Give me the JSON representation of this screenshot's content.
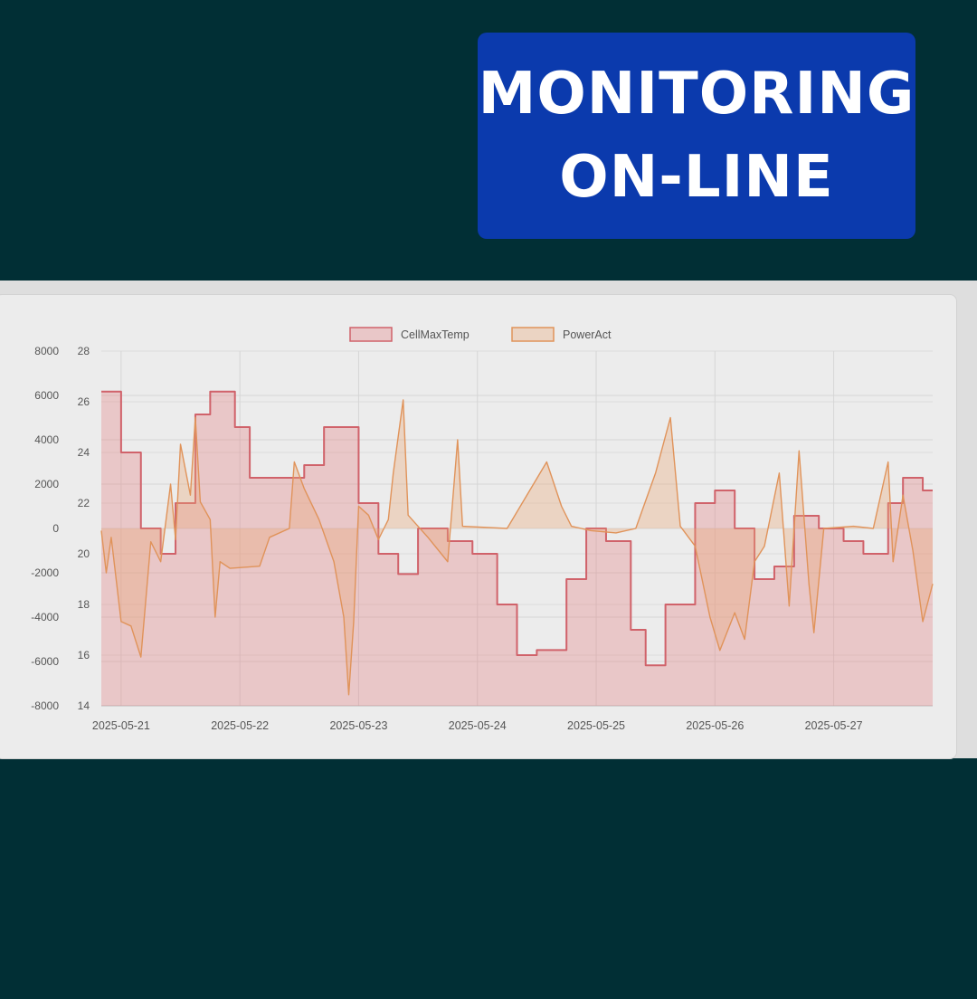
{
  "banner": {
    "line1": "MONITORING",
    "line2": "ON-LINE",
    "background": "#0b3aad"
  },
  "chart_data": {
    "type": "area",
    "x_start": "2025-05-20T20:00",
    "x_end": "2025-05-27T20:00",
    "x_tick_labels": [
      "2025-05-21",
      "2025-05-22",
      "2025-05-23",
      "2025-05-24",
      "2025-05-25",
      "2025-05-26",
      "2025-05-27"
    ],
    "y_left": {
      "ticks": [
        8000,
        6000,
        4000,
        2000,
        0,
        -2000,
        -4000,
        -6000,
        -8000
      ],
      "range": [
        -8000,
        8000
      ]
    },
    "y_right": {
      "ticks": [
        28,
        26,
        24,
        22,
        20,
        18,
        16,
        14
      ],
      "range": [
        14,
        28
      ]
    },
    "grid": true,
    "legend_position": "top-center",
    "series": [
      {
        "name": "CellMaxTemp",
        "axis": "right",
        "color": "#d0626a",
        "fill": "rgba(226,120,125,0.32)",
        "points": [
          [
            "2025-05-20T20:00",
            26.4
          ],
          [
            "2025-05-21T00:00",
            24.0
          ],
          [
            "2025-05-21T04:00",
            21.0
          ],
          [
            "2025-05-21T08:00",
            20.0
          ],
          [
            "2025-05-21T11:00",
            22.0
          ],
          [
            "2025-05-21T15:00",
            25.5
          ],
          [
            "2025-05-21T18:00",
            26.4
          ],
          [
            "2025-05-21T23:00",
            25.0
          ],
          [
            "2025-05-22T02:00",
            23.0
          ],
          [
            "2025-05-22T09:00",
            23.0
          ],
          [
            "2025-05-22T13:00",
            23.5
          ],
          [
            "2025-05-22T17:00",
            25.0
          ],
          [
            "2025-05-22T20:00",
            25.0
          ],
          [
            "2025-05-23T00:00",
            22.0
          ],
          [
            "2025-05-23T04:00",
            20.0
          ],
          [
            "2025-05-23T08:00",
            19.2
          ],
          [
            "2025-05-23T12:00",
            21.0
          ],
          [
            "2025-05-23T18:00",
            20.5
          ],
          [
            "2025-05-23T23:00",
            20.0
          ],
          [
            "2025-05-24T04:00",
            18.0
          ],
          [
            "2025-05-24T08:00",
            16.0
          ],
          [
            "2025-05-24T12:00",
            16.2
          ],
          [
            "2025-05-24T18:00",
            19.0
          ],
          [
            "2025-05-24T22:00",
            21.0
          ],
          [
            "2025-05-25T02:00",
            20.5
          ],
          [
            "2025-05-25T07:00",
            17.0
          ],
          [
            "2025-05-25T10:00",
            15.6
          ],
          [
            "2025-05-25T14:00",
            18.0
          ],
          [
            "2025-05-25T20:00",
            22.0
          ],
          [
            "2025-05-26T00:00",
            22.5
          ],
          [
            "2025-05-26T04:00",
            21.0
          ],
          [
            "2025-05-26T08:00",
            19.0
          ],
          [
            "2025-05-26T12:00",
            19.5
          ],
          [
            "2025-05-26T16:00",
            21.5
          ],
          [
            "2025-05-26T21:00",
            21.0
          ],
          [
            "2025-05-27T02:00",
            20.5
          ],
          [
            "2025-05-27T06:00",
            20.0
          ],
          [
            "2025-05-27T11:00",
            22.0
          ],
          [
            "2025-05-27T14:00",
            23.0
          ],
          [
            "2025-05-27T18:00",
            22.5
          ],
          [
            "2025-05-27T20:00",
            22.5
          ]
        ]
      },
      {
        "name": "PowerAct",
        "axis": "left",
        "color": "#e0935a",
        "fill": "rgba(235,170,120,0.35)",
        "points": [
          [
            "2025-05-20T20:00",
            -100
          ],
          [
            "2025-05-20T21:00",
            -2000
          ],
          [
            "2025-05-20T22:00",
            -400
          ],
          [
            "2025-05-21T00:00",
            -4200
          ],
          [
            "2025-05-21T02:00",
            -4400
          ],
          [
            "2025-05-21T04:00",
            -5800
          ],
          [
            "2025-05-21T06:00",
            -600
          ],
          [
            "2025-05-21T08:00",
            -1500
          ],
          [
            "2025-05-21T10:00",
            2000
          ],
          [
            "2025-05-21T11:00",
            -500
          ],
          [
            "2025-05-21T12:00",
            3800
          ],
          [
            "2025-05-21T14:00",
            1500
          ],
          [
            "2025-05-21T15:00",
            5000
          ],
          [
            "2025-05-21T16:00",
            1200
          ],
          [
            "2025-05-21T18:00",
            400
          ],
          [
            "2025-05-21T19:00",
            -4000
          ],
          [
            "2025-05-21T20:00",
            -1500
          ],
          [
            "2025-05-21T22:00",
            -1800
          ],
          [
            "2025-05-22T04:00",
            -1700
          ],
          [
            "2025-05-22T06:00",
            -400
          ],
          [
            "2025-05-22T10:00",
            0
          ],
          [
            "2025-05-22T11:00",
            3000
          ],
          [
            "2025-05-22T13:00",
            1800
          ],
          [
            "2025-05-22T16:00",
            400
          ],
          [
            "2025-05-22T19:00",
            -1500
          ],
          [
            "2025-05-22T21:00",
            -4000
          ],
          [
            "2025-05-22T22:00",
            -7500
          ],
          [
            "2025-05-22T23:00",
            -4200
          ],
          [
            "2025-05-23T00:00",
            1000
          ],
          [
            "2025-05-23T02:00",
            600
          ],
          [
            "2025-05-23T04:00",
            -500
          ],
          [
            "2025-05-23T06:00",
            400
          ],
          [
            "2025-05-23T07:00",
            2500
          ],
          [
            "2025-05-23T09:00",
            5800
          ],
          [
            "2025-05-23T10:00",
            600
          ],
          [
            "2025-05-23T14:00",
            -400
          ],
          [
            "2025-05-23T18:00",
            -1500
          ],
          [
            "2025-05-23T20:00",
            4000
          ],
          [
            "2025-05-23T21:00",
            100
          ],
          [
            "2025-05-24T06:00",
            0
          ],
          [
            "2025-05-24T10:00",
            1500
          ],
          [
            "2025-05-24T14:00",
            3000
          ],
          [
            "2025-05-24T17:00",
            1000
          ],
          [
            "2025-05-24T19:00",
            100
          ],
          [
            "2025-05-24T23:00",
            -100
          ],
          [
            "2025-05-25T04:00",
            -200
          ],
          [
            "2025-05-25T08:00",
            0
          ],
          [
            "2025-05-25T12:00",
            2500
          ],
          [
            "2025-05-25T15:00",
            5000
          ],
          [
            "2025-05-25T17:00",
            100
          ],
          [
            "2025-05-25T20:00",
            -800
          ],
          [
            "2025-05-25T23:00",
            -4000
          ],
          [
            "2025-05-26T01:00",
            -5500
          ],
          [
            "2025-05-26T04:00",
            -3800
          ],
          [
            "2025-05-26T06:00",
            -5000
          ],
          [
            "2025-05-26T08:00",
            -1500
          ],
          [
            "2025-05-26T10:00",
            -800
          ],
          [
            "2025-05-26T13:00",
            2500
          ],
          [
            "2025-05-26T15:00",
            -3500
          ],
          [
            "2025-05-26T17:00",
            3500
          ],
          [
            "2025-05-26T19:00",
            -2500
          ],
          [
            "2025-05-26T20:00",
            -4700
          ],
          [
            "2025-05-26T22:00",
            0
          ],
          [
            "2025-05-27T04:00",
            100
          ],
          [
            "2025-05-27T08:00",
            0
          ],
          [
            "2025-05-27T11:00",
            3000
          ],
          [
            "2025-05-27T12:00",
            -1500
          ],
          [
            "2025-05-27T14:00",
            1500
          ],
          [
            "2025-05-27T16:00",
            -1000
          ],
          [
            "2025-05-27T18:00",
            -4200
          ],
          [
            "2025-05-27T20:00",
            -2500
          ]
        ]
      }
    ]
  }
}
